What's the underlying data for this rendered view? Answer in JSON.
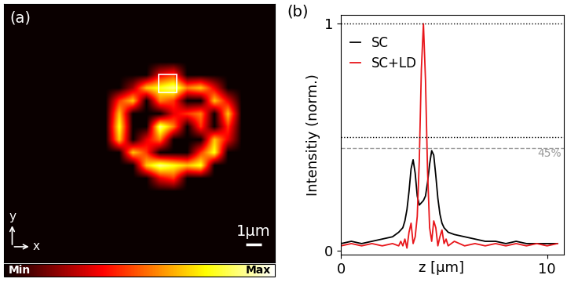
{
  "chart_data": [
    {
      "type": "heatmap",
      "panel_label": "(a)",
      "color": "hot",
      "tick_labels": false,
      "xlim": [
        0,
        17.25
      ],
      "ylim": [
        0,
        16.5
      ],
      "cells": [
        [
          0,
          0,
          0,
          0,
          0,
          0,
          0,
          0,
          0,
          0,
          0,
          0,
          0,
          0,
          0,
          0,
          0,
          0,
          0,
          0
        ],
        [
          0,
          0,
          0,
          0,
          0,
          0,
          0,
          0,
          0,
          0,
          0,
          0,
          0,
          0,
          0,
          0,
          0,
          0,
          0,
          0
        ],
        [
          0,
          0,
          0,
          0,
          0,
          0,
          0,
          0,
          0,
          0,
          0,
          0,
          0,
          0,
          0,
          0,
          0,
          0,
          0,
          0
        ],
        [
          0,
          0,
          0,
          0,
          0,
          0,
          0,
          0,
          0,
          0,
          0,
          0,
          0,
          0,
          0,
          0,
          0,
          0,
          0,
          0
        ],
        [
          0,
          0,
          0,
          0,
          0,
          0,
          0,
          0,
          0,
          0,
          0,
          0,
          0,
          0,
          0,
          0,
          0,
          0,
          0,
          0
        ],
        [
          0,
          0,
          0,
          0,
          0,
          0,
          0,
          0,
          0,
          0,
          0,
          3,
          4,
          0,
          0,
          0,
          0,
          0,
          0,
          0
        ],
        [
          0,
          0,
          0,
          0,
          0,
          0,
          0,
          0,
          0,
          2,
          6,
          7,
          8,
          5,
          6,
          3,
          0,
          0,
          0,
          0
        ],
        [
          0,
          0,
          0,
          0,
          0,
          0,
          0,
          0,
          4,
          6,
          0,
          5,
          4,
          0,
          0,
          6,
          3,
          0,
          0,
          0
        ],
        [
          0,
          0,
          0,
          0,
          0,
          0,
          0,
          0,
          6,
          0,
          0,
          0,
          3,
          4,
          5,
          0,
          6,
          0,
          0,
          0
        ],
        [
          0,
          0,
          0,
          0,
          0,
          0,
          0,
          0,
          7,
          0,
          0,
          8,
          5,
          0,
          4,
          0,
          4,
          0,
          0,
          0
        ],
        [
          0,
          0,
          0,
          0,
          0,
          0,
          0,
          0,
          6,
          0,
          3,
          5,
          0,
          0,
          0,
          6,
          3,
          0,
          0,
          0
        ],
        [
          0,
          0,
          0,
          0,
          0,
          0,
          0,
          0,
          0,
          6,
          4,
          0,
          0,
          0,
          4,
          7,
          0,
          0,
          0,
          0
        ],
        [
          0,
          0,
          0,
          0,
          0,
          0,
          0,
          0,
          0,
          0,
          6,
          8,
          7,
          6,
          7,
          0,
          0,
          0,
          0,
          0
        ],
        [
          0,
          0,
          0,
          0,
          0,
          0,
          0,
          0,
          0,
          0,
          0,
          3,
          4,
          0,
          0,
          0,
          0,
          0,
          0,
          0
        ],
        [
          0,
          0,
          0,
          0,
          0,
          0,
          0,
          0,
          0,
          0,
          0,
          0,
          0,
          0,
          0,
          0,
          0,
          0,
          0,
          0
        ],
        [
          0,
          0,
          0,
          0,
          0,
          0,
          0,
          0,
          0,
          0,
          0,
          0,
          0,
          0,
          0,
          0,
          0,
          0,
          0,
          0
        ],
        [
          0,
          0,
          0,
          0,
          0,
          0,
          0,
          0,
          0,
          0,
          0,
          0,
          0,
          0,
          0,
          0,
          0,
          0,
          0,
          0
        ],
        [
          0,
          0,
          0,
          0,
          0,
          0,
          0,
          0,
          0,
          0,
          0,
          0,
          0,
          0,
          0,
          0,
          0,
          0,
          0,
          0
        ],
        [
          0,
          0,
          0,
          0,
          0,
          0,
          0,
          0,
          0,
          0,
          0,
          0,
          0,
          0,
          0,
          0,
          0,
          0,
          0,
          0
        ],
        [
          0,
          0,
          0,
          0,
          0,
          0,
          0,
          0,
          0,
          0,
          0,
          0,
          0,
          0,
          0,
          0,
          0,
          0,
          0,
          0
        ]
      ],
      "colorbar": {
        "range": [
          0,
          9
        ],
        "ticks": [
          {
            "value": 0,
            "label": "Min"
          },
          {
            "value": 9,
            "label": "Max"
          }
        ]
      },
      "scale_bar": {
        "length": 1,
        "label": "1µm"
      },
      "axis_labels": {
        "x": "x",
        "y": "y"
      }
    },
    {
      "type": "line",
      "panel_label": "(b)",
      "x": [
        0,
        0.5,
        1,
        1.5,
        2,
        2.5,
        2.8,
        2.9,
        3.0,
        3.1,
        3.2,
        3.3,
        3.4,
        3.5,
        3.6,
        3.7,
        3.8,
        3.9,
        4.0,
        4.1,
        4.2,
        4.3,
        4.4,
        4.5,
        4.6,
        4.7,
        4.8,
        4.9,
        5.0,
        5.1,
        5.2,
        5.5,
        6,
        6.5,
        7,
        7.5,
        8,
        8.5,
        9,
        9.5,
        10,
        10.5
      ],
      "series": [
        {
          "name": "SC",
          "color": "#000000",
          "values": [
            0.03,
            0.04,
            0.03,
            0.04,
            0.05,
            0.06,
            0.08,
            0.09,
            0.1,
            0.13,
            0.18,
            0.26,
            0.36,
            0.4,
            0.34,
            0.24,
            0.2,
            0.21,
            0.22,
            0.24,
            0.3,
            0.38,
            0.44,
            0.42,
            0.33,
            0.23,
            0.16,
            0.12,
            0.1,
            0.09,
            0.08,
            0.07,
            0.06,
            0.05,
            0.04,
            0.04,
            0.03,
            0.04,
            0.03,
            0.03,
            0.03,
            0.03
          ]
        },
        {
          "name": "SC+LD",
          "color": "#e8161b",
          "values": [
            0.02,
            0.03,
            0.02,
            0.03,
            0.02,
            0.03,
            0.02,
            0.04,
            0.02,
            0.05,
            0.01,
            0.08,
            0.12,
            0.03,
            0.06,
            0.15,
            0.4,
            0.8,
            1.0,
            0.75,
            0.35,
            0.1,
            0.04,
            0.13,
            0.1,
            0.02,
            0.06,
            0.09,
            0.03,
            0.05,
            0.02,
            0.04,
            0.02,
            0.03,
            0.02,
            0.03,
            0.02,
            0.03,
            0.02,
            0.03,
            0.02,
            0.03
          ]
        }
      ],
      "x_label": "z [µm]",
      "y_label": "Intensitiy (norm.)",
      "xlim": [
        0,
        10.8
      ],
      "xticks": [
        0,
        10
      ],
      "ylim": [
        -0.02,
        1.04
      ],
      "yticks": [
        0,
        1
      ],
      "legend": "upper left",
      "reference_lines": [
        {
          "y": 1,
          "line_style": "dotted",
          "color": "#000000"
        },
        {
          "y": 0.5,
          "line_style": "dotted",
          "color": "#000000"
        },
        {
          "y": 0.45,
          "line_style": "dashed",
          "color": "#999999",
          "label": "45%"
        }
      ]
    }
  ]
}
